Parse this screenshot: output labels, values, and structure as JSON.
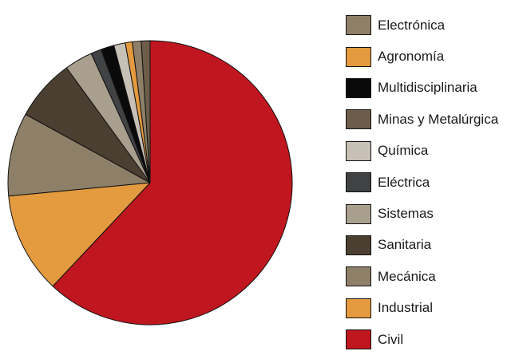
{
  "chart_data": {
    "type": "pie",
    "title": "",
    "legend_position": "right",
    "slices": [
      {
        "label": "Civil",
        "value": 62.0,
        "color": "#C0161F"
      },
      {
        "label": "Industrial",
        "value": 11.5,
        "color": "#E49A3E"
      },
      {
        "label": "Mecánica",
        "value": 9.5,
        "color": "#8E8068"
      },
      {
        "label": "Sanitaria",
        "value": 7.0,
        "color": "#4B3F31"
      },
      {
        "label": "Sistemas",
        "value": 3.2,
        "color": "#A99F8F"
      },
      {
        "label": "Eléctrica",
        "value": 1.2,
        "color": "#404244"
      },
      {
        "label": "Multidisciplinaria",
        "value": 1.5,
        "color": "#0A0A0A"
      },
      {
        "label": "Química",
        "value": 1.3,
        "color": "#C7C0B6"
      },
      {
        "label": "Agronomía",
        "value": 0.8,
        "color": "#E49A3E"
      },
      {
        "label": "Electrónica",
        "value": 1.0,
        "color": "#8E8068"
      },
      {
        "label": "Minas y Metalúrgica",
        "value": 1.0,
        "color": "#6B5D49"
      }
    ],
    "legend_order": [
      "Electrónica",
      "Agronomía",
      "Multidisciplinaria",
      "Minas y Metalúrgica",
      "Química",
      "Eléctrica",
      "Sistemas",
      "Sanitaria",
      "Mecánica",
      "Industrial",
      "Civil"
    ]
  }
}
